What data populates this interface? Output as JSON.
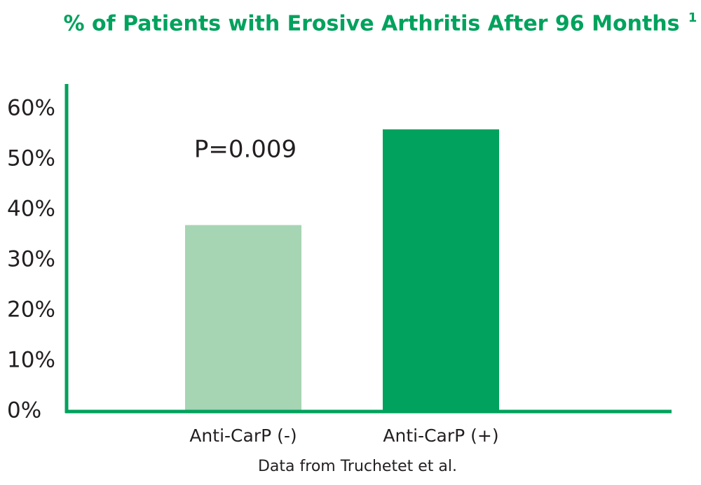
{
  "chart_data": {
    "type": "bar",
    "title": "% of Patients with Erosive Arthritis After 96 Months",
    "title_note": "1",
    "categories": [
      "Anti-CarP (-)",
      "Anti-CarP (+)"
    ],
    "values": [
      37,
      56
    ],
    "colors": [
      "#a6d5b3",
      "#00a25d"
    ],
    "axis_color": "#00a25d",
    "ylim": [
      0,
      65
    ],
    "yticks": [
      {
        "value": 0,
        "label": "0%"
      },
      {
        "value": 10,
        "label": "10%"
      },
      {
        "value": 20,
        "label": "20%"
      },
      {
        "value": 30,
        "label": "30%"
      },
      {
        "value": 40,
        "label": "40%"
      },
      {
        "value": 50,
        "label": "50%"
      },
      {
        "value": 60,
        "label": "60%"
      }
    ],
    "grid": false,
    "annotation": "P=0.009",
    "source": "Data from Truchetet et al."
  }
}
